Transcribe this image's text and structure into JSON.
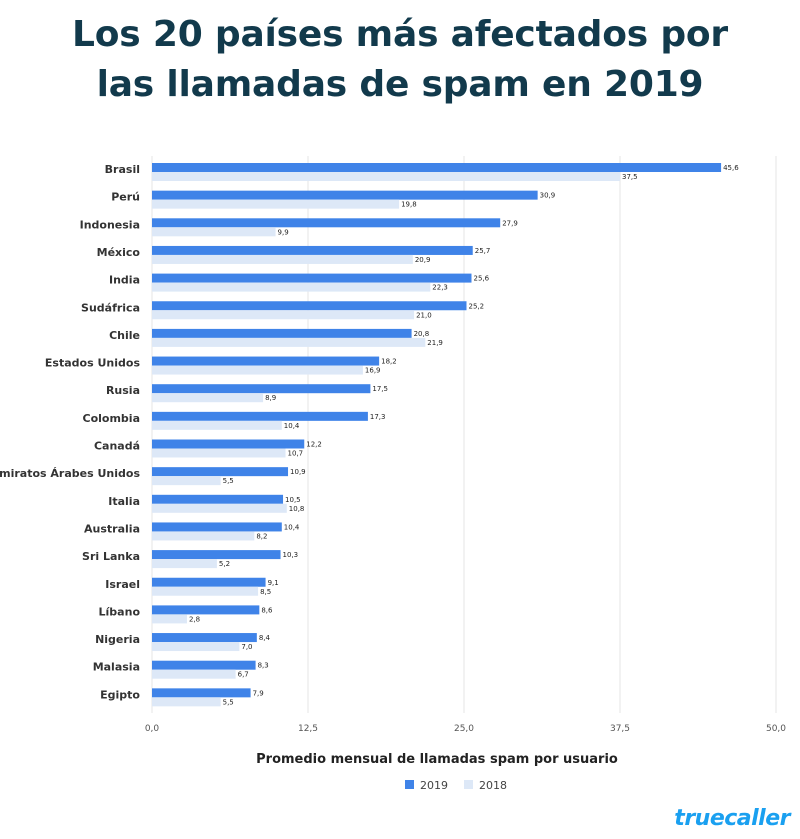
{
  "title_lines": [
    "Los 20 países más afectados por",
    "las llamadas de spam en 2019"
  ],
  "brand": "truecaller",
  "colors": {
    "title": "#123a4c",
    "series_2019": "#3f83e8",
    "series_2018": "#dde8f7",
    "grid": "#e6e6e6",
    "brand": "#1aa0f0"
  },
  "chart_data": {
    "type": "bar",
    "orientation": "horizontal",
    "categories": [
      "Brasil",
      "Perú",
      "Indonesia",
      "México",
      "India",
      "Sudáfrica",
      "Chile",
      "Estados Unidos",
      "Rusia",
      "Colombia",
      "Canadá",
      "Emiratos Árabes Unidos",
      "Italia",
      "Australia",
      "Sri Lanka",
      "Israel",
      "Líbano",
      "Nigeria",
      "Malasia",
      "Egipto"
    ],
    "series": [
      {
        "name": "2019",
        "values": [
          45.6,
          30.9,
          27.9,
          25.7,
          25.6,
          25.2,
          20.8,
          18.2,
          17.5,
          17.3,
          12.2,
          10.9,
          10.5,
          10.4,
          10.3,
          9.1,
          8.6,
          8.4,
          8.3,
          7.9
        ],
        "value_labels": [
          "45,6",
          "30,9",
          "27,9",
          "25,7",
          "25,6",
          "25,2",
          "20,8",
          "18,2",
          "17,5",
          "17,3",
          "12,2",
          "10,9",
          "10,5",
          "10,4",
          "10,3",
          "9,1",
          "8,6",
          "8,4",
          "8,3",
          "7,9"
        ]
      },
      {
        "name": "2018",
        "values": [
          37.5,
          19.8,
          9.9,
          20.9,
          22.3,
          21.0,
          21.9,
          16.9,
          8.9,
          10.4,
          10.7,
          5.5,
          10.8,
          8.2,
          5.2,
          8.5,
          2.8,
          7.0,
          6.7,
          5.5
        ],
        "value_labels": [
          "37,5",
          "19,8",
          "9,9",
          "20,9",
          "22,3",
          "21,0",
          "21,9",
          "16,9",
          "8,9",
          "10,4",
          "10,7",
          "5,5",
          "10,8",
          "8,2",
          "5,2",
          "8,5",
          "2,8",
          "7,0",
          "6,7",
          "5,5"
        ]
      }
    ],
    "xlim": [
      0,
      50
    ],
    "xticks": [
      0,
      12.5,
      25,
      37.5,
      50
    ],
    "xtick_labels": [
      "0,0",
      "12,5",
      "25,0",
      "37,5",
      "50,0"
    ],
    "xlabel": "Promedio mensual de llamadas spam por usuario",
    "legend": [
      "2019",
      "2018"
    ],
    "legend_position": "bottom-center",
    "grid": true
  }
}
